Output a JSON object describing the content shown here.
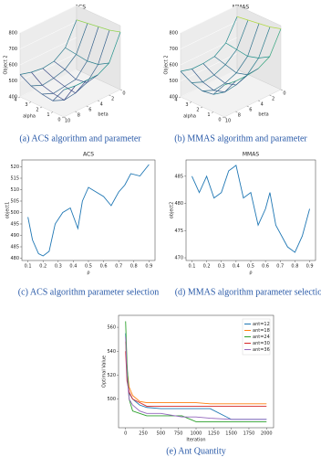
{
  "chart_data": [
    {
      "type": "surface",
      "title": "ACS",
      "caption": "(a) ACS algorithm and parameter",
      "xlabel": "alpha",
      "ylabel": "beta",
      "zlabel": "Object 2",
      "alpha": [
        0,
        1,
        2,
        3,
        4
      ],
      "beta": [
        0,
        2,
        4,
        6,
        8,
        10
      ],
      "z": [
        [
          760,
          600,
          560,
          560,
          560,
          570
        ],
        [
          740,
          560,
          480,
          450,
          440,
          470
        ],
        [
          730,
          550,
          470,
          460,
          450,
          480
        ],
        [
          720,
          560,
          500,
          480,
          470,
          500
        ],
        [
          710,
          570,
          520,
          510,
          520,
          540
        ]
      ],
      "xticks": [
        0,
        1,
        2,
        3,
        4
      ],
      "yticks": [
        0,
        2,
        4,
        6,
        8,
        10
      ],
      "zlim": [
        400,
        800
      ],
      "zticks": [
        400,
        500,
        600,
        700,
        800
      ]
    },
    {
      "type": "surface",
      "title": "MMAS",
      "caption": "(b) MMAS algorithm and parameter",
      "xlabel": "alpha",
      "ylabel": "beta",
      "zlabel": "Object 2",
      "alpha": [
        0,
        1,
        2,
        3,
        4
      ],
      "beta": [
        0,
        2,
        4,
        6,
        8,
        10
      ],
      "z": [
        [
          780,
          640,
          600,
          590,
          590,
          600
        ],
        [
          760,
          600,
          530,
          500,
          490,
          510
        ],
        [
          750,
          580,
          510,
          480,
          470,
          500
        ],
        [
          740,
          590,
          530,
          500,
          490,
          520
        ],
        [
          730,
          600,
          550,
          540,
          540,
          560
        ]
      ],
      "xticks": [
        0,
        1,
        2,
        3,
        4
      ],
      "yticks": [
        0,
        2,
        4,
        6,
        8,
        10
      ],
      "zlim": [
        400,
        800
      ],
      "zticks": [
        400,
        500,
        600,
        700,
        800
      ]
    },
    {
      "type": "line",
      "title": "ACS",
      "caption": "(c) ACS algorithm parameter selection",
      "xlabel": "ρ",
      "ylabel": "object1",
      "color": "#1f77b4",
      "x": [
        0.1,
        0.13,
        0.17,
        0.2,
        0.24,
        0.28,
        0.33,
        0.38,
        0.43,
        0.46,
        0.5,
        0.55,
        0.6,
        0.65,
        0.7,
        0.74,
        0.78,
        0.84,
        0.9
      ],
      "values": [
        498,
        488,
        482,
        481,
        483,
        495,
        500,
        502,
        493,
        505,
        511,
        509,
        507,
        503,
        509,
        512,
        517,
        516,
        521
      ],
      "xlim": [
        0.06,
        0.94
      ],
      "xticks": [
        0.1,
        0.2,
        0.3,
        0.4,
        0.5,
        0.6,
        0.7,
        0.8,
        0.9
      ],
      "ylim": [
        479,
        523
      ],
      "yticks": [
        480,
        485,
        490,
        495,
        500,
        505,
        510,
        515,
        520
      ]
    },
    {
      "type": "line",
      "title": "MMAS",
      "caption": "(d) MMAS algorithm parameter selection",
      "xlabel": "ρ",
      "ylabel": "object2",
      "color": "#1f77b4",
      "x": [
        0.1,
        0.15,
        0.2,
        0.25,
        0.3,
        0.35,
        0.4,
        0.45,
        0.5,
        0.55,
        0.6,
        0.63,
        0.67,
        0.75,
        0.8,
        0.85,
        0.9
      ],
      "values": [
        485,
        482,
        485,
        481,
        482,
        486,
        487,
        481,
        482,
        476,
        479,
        482,
        476,
        472,
        471,
        474,
        479
      ],
      "xlim": [
        0.06,
        0.94
      ],
      "xticks": [
        0.1,
        0.2,
        0.3,
        0.4,
        0.5,
        0.6,
        0.7,
        0.8,
        0.9
      ],
      "ylim": [
        469.5,
        488
      ],
      "yticks": [
        470,
        475,
        480,
        485
      ]
    },
    {
      "type": "line",
      "caption": "(e) Ant Quantity",
      "xlabel": "Iteration",
      "ylabel": "Optimal Value",
      "legend": "upper right",
      "x": [
        0,
        20,
        50,
        100,
        200,
        300,
        500,
        800,
        1000,
        1200,
        1500,
        2000
      ],
      "series": [
        {
          "name": "ant=12",
          "color": "#1f77b4",
          "values": [
            555,
            520,
            505,
            500,
            495,
            493,
            492,
            492,
            492,
            492,
            483,
            483
          ]
        },
        {
          "name": "ant=18",
          "color": "#ff7f0e",
          "values": [
            548,
            525,
            510,
            503,
            498,
            497,
            497,
            497,
            497,
            496,
            496,
            496
          ]
        },
        {
          "name": "ant=24",
          "color": "#2ca02c",
          "values": [
            565,
            530,
            500,
            490,
            488,
            486,
            486,
            486,
            481,
            481,
            481,
            481
          ]
        },
        {
          "name": "ant=30",
          "color": "#d62728",
          "values": [
            540,
            515,
            506,
            500,
            497,
            494,
            494,
            494,
            494,
            494,
            494,
            494
          ]
        },
        {
          "name": "ant=36",
          "color": "#9467bd",
          "values": [
            552,
            520,
            500,
            495,
            490,
            488,
            488,
            485,
            485,
            484,
            483,
            483
          ]
        }
      ],
      "xlim": [
        -100,
        2100
      ],
      "xticks": [
        0,
        250,
        500,
        750,
        1000,
        1250,
        1500,
        1750,
        2000
      ],
      "ylim": [
        476,
        570
      ],
      "yticks": [
        500,
        520,
        540,
        560
      ]
    }
  ]
}
